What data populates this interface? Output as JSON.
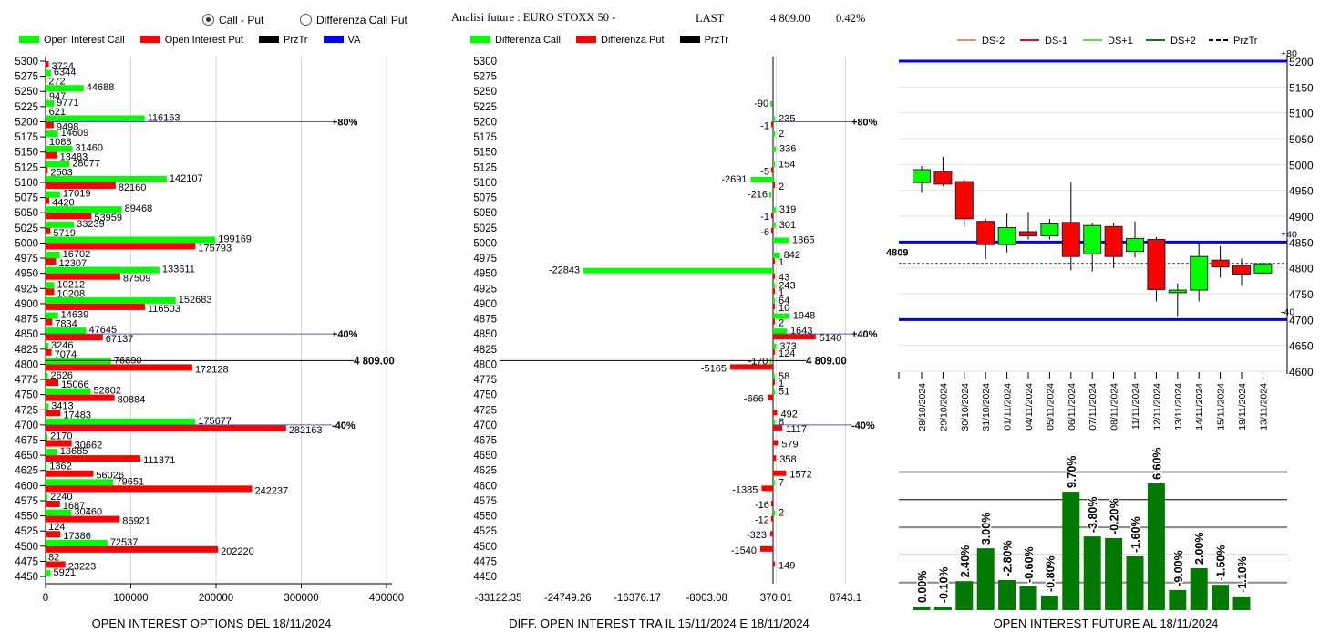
{
  "header": {
    "radio_call_put": "Call - Put",
    "radio_diff": "Differenza Call Put",
    "title": "Analisi future : EURO STOXX 50 -",
    "last_label": "LAST",
    "last_value": "4 809.00",
    "change": "0.42%"
  },
  "legend_left": [
    "Open Interest Call",
    "Open Interest Put",
    "PrzTr",
    "VA"
  ],
  "legend_mid": [
    "Differenza Call",
    "Differenza Put",
    "PrzTr"
  ],
  "legend_right": [
    "DS-2",
    "DS-1",
    "DS+1",
    "DS+2",
    "PrzTr"
  ],
  "colors": {
    "call": "#00ff00",
    "put": "#ff0000",
    "przTr": "#000000",
    "va": "#0000ff",
    "ds_minus2": "#e8926a",
    "ds_minus1": "#dd1111",
    "ds_plus1": "#44ee44",
    "ds_plus2": "#117711",
    "oi_bar": "#007a00"
  },
  "chart_data": [
    {
      "type": "bar",
      "title": "OPEN INTEREST OPTIONS DEL 18/11/2024",
      "categories": [
        "5300",
        "5275",
        "5250",
        "5225",
        "5200",
        "5175",
        "5150",
        "5125",
        "5100",
        "5075",
        "5050",
        "5025",
        "5000",
        "4975",
        "4950",
        "4925",
        "4900",
        "4875",
        "4850",
        "4825",
        "4800",
        "4775",
        "4750",
        "4725",
        "4700",
        "4675",
        "4650",
        "4625",
        "4600",
        "4575",
        "4550",
        "4525",
        "4500",
        "4475",
        "4450"
      ],
      "xticks": [
        "0",
        "100000",
        "200000",
        "300000",
        "400000"
      ],
      "xlim": [
        0,
        400000
      ],
      "series": [
        {
          "name": "Open Interest Call",
          "values": [
            null,
            6344,
            44688,
            9771,
            116163,
            14609,
            31460,
            28077,
            142107,
            17019,
            89468,
            33239,
            199169,
            16702,
            133611,
            10212,
            152683,
            14639,
            47645,
            3246,
            76890,
            2626,
            52802,
            3413,
            175677,
            2170,
            13685,
            1362,
            79651,
            2240,
            30460,
            124,
            72537,
            82,
            5921
          ]
        },
        {
          "name": "Open Interest Put",
          "values": [
            3724,
            272,
            947,
            621,
            9498,
            1088,
            13483,
            2503,
            82160,
            4420,
            53959,
            5719,
            175793,
            12307,
            87509,
            10208,
            116503,
            7834,
            67137,
            7074,
            172128,
            15066,
            80884,
            17483,
            282163,
            30662,
            111371,
            56026,
            242237,
            16871,
            86921,
            17386,
            202220,
            23223,
            null
          ]
        }
      ],
      "annotations": [
        {
          "strike": "5200",
          "label": "+80%",
          "kind": "va"
        },
        {
          "strike": "4850",
          "label": "+40%",
          "kind": "va"
        },
        {
          "strike": "4700",
          "label": "-40%",
          "kind": "va"
        },
        {
          "strike": "4800",
          "label": "4 809.00",
          "kind": "przTr"
        }
      ]
    },
    {
      "type": "bar",
      "title": "DIFF. OPEN INTEREST TRA IL 15/11/2024 E 18/11/2024",
      "categories": [
        "5300",
        "5275",
        "5250",
        "5225",
        "5200",
        "5175",
        "5150",
        "5125",
        "5100",
        "5075",
        "5050",
        "5025",
        "5000",
        "4975",
        "4950",
        "4925",
        "4900",
        "4875",
        "4850",
        "4825",
        "4800",
        "4775",
        "4750",
        "4725",
        "4700",
        "4675",
        "4650",
        "4625",
        "4600",
        "4575",
        "4550",
        "4525",
        "4500",
        "4475",
        "4450"
      ],
      "xticks": [
        "-33122.35",
        "-24749.26",
        "-16376.17",
        "-8003.08",
        "370.01",
        "8743.1"
      ],
      "xlim": [
        -33122.35,
        8743.1
      ],
      "series": [
        {
          "name": "Differenza Call",
          "values": [
            null,
            null,
            null,
            -90,
            235,
            2,
            336,
            154,
            -2691,
            -216,
            319,
            301,
            1865,
            842,
            -22843,
            243,
            64,
            1948,
            1643,
            373,
            -170,
            58,
            51,
            null,
            8,
            null,
            null,
            null,
            7,
            null,
            2,
            null,
            null,
            null,
            null
          ]
        },
        {
          "name": "Differenza Put",
          "values": [
            null,
            null,
            null,
            null,
            -1,
            null,
            null,
            -5,
            2,
            null,
            -1,
            -6,
            null,
            1,
            43,
            1,
            10,
            2,
            5140,
            124,
            -5165,
            1,
            -666,
            492,
            1117,
            579,
            358,
            1572,
            -1385,
            -16,
            -12,
            -323,
            -1540,
            149,
            null
          ]
        }
      ],
      "annotations": [
        {
          "strike": "5200",
          "label": "+80%",
          "kind": "va"
        },
        {
          "strike": "4850",
          "label": "+40%",
          "kind": "va"
        },
        {
          "strike": "4700",
          "label": "-40%",
          "kind": "va"
        },
        {
          "strike": "4800",
          "label": "4 809.00",
          "kind": "przTr"
        }
      ]
    },
    {
      "type": "candlestick",
      "categories": [
        "28/10/2024",
        "29/10/2024",
        "30/10/2024",
        "31/10/2024",
        "01/11/2024",
        "04/11/2024",
        "05/11/2024",
        "06/11/2024",
        "07/11/2024",
        "08/11/2024",
        "11/11/2024",
        "12/11/2024",
        "13/11/2024",
        "14/11/2024",
        "15/11/2024",
        "18/11/2024",
        "13/11/2024"
      ],
      "ohlc": [
        [
          4965,
          4997,
          4945,
          4990
        ],
        [
          4987,
          5015,
          4958,
          4962
        ],
        [
          4967,
          4970,
          4880,
          4895
        ],
        [
          4890,
          4895,
          4817,
          4845
        ],
        [
          4845,
          4905,
          4830,
          4878
        ],
        [
          4870,
          4908,
          4855,
          4862
        ],
        [
          4862,
          4895,
          4855,
          4885
        ],
        [
          4888,
          4965,
          4795,
          4822
        ],
        [
          4827,
          4887,
          4793,
          4882
        ],
        [
          4880,
          4887,
          4800,
          4822
        ],
        [
          4832,
          4890,
          4820,
          4857
        ],
        [
          4855,
          4860,
          4735,
          4758
        ],
        [
          4752,
          4770,
          4705,
          4757
        ],
        [
          4757,
          4848,
          4735,
          4822
        ],
        [
          4815,
          4842,
          4781,
          4802
        ],
        [
          4805,
          4818,
          4765,
          4788
        ],
        [
          4790,
          4820,
          4788,
          4808
        ]
      ],
      "yticks": [
        "5200",
        "5150",
        "5100",
        "5050",
        "5000",
        "4950",
        "4900",
        "4850",
        "4800",
        "4750",
        "4700",
        "4650",
        "4600"
      ],
      "ylim": [
        4600,
        5200
      ],
      "levels": [
        {
          "value": 5200,
          "label": "+80"
        },
        {
          "value": 4850,
          "label": "+40"
        },
        {
          "value": 4700,
          "label": "-40"
        }
      ],
      "przTr": {
        "value": 4809,
        "label": "4809"
      }
    },
    {
      "type": "bar",
      "title": "OPEN INTEREST FUTURE AL 18/11/2024",
      "labels": [
        "0.00%",
        "-0.10%",
        "2.40%",
        "3.00%",
        "-2.80%",
        "-0.60%",
        "-0.80%",
        "9.70%",
        "-3.80%",
        "-0.20%",
        "-1.60%",
        "6.60%",
        "-9.00%",
        "2.00%",
        "-1.50%",
        "-1.10%"
      ],
      "values": [
        0.13,
        0.13,
        1.05,
        2.24,
        1.09,
        0.86,
        0.53,
        4.29,
        2.67,
        2.61,
        1.95,
        4.59,
        0.73,
        1.52,
        0.92,
        0.5
      ],
      "ylim": [
        0,
        5
      ]
    }
  ]
}
